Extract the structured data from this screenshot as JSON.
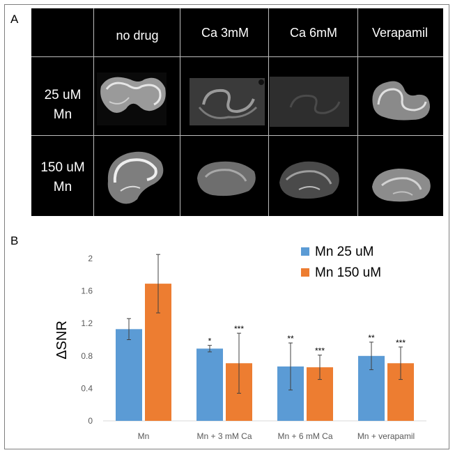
{
  "panel_a": {
    "label": "A",
    "columns": [
      "no drug",
      "Ca 3mM",
      "Ca 6mM",
      "Verapamil"
    ],
    "rows": [
      {
        "line1": "25 uM",
        "line2": "Mn"
      },
      {
        "line1": "150 uM",
        "line2": "Mn"
      }
    ]
  },
  "panel_b": {
    "label": "B"
  },
  "colors": {
    "series1": "#5b9bd5",
    "series2": "#ed7d31",
    "axis": "#d9d9d9",
    "tick": "#595959"
  },
  "chart_data": {
    "type": "bar",
    "title": "",
    "xlabel": "",
    "ylabel": "ΔSNR",
    "ylim": [
      0,
      2
    ],
    "yticks": [
      "0",
      "0.4",
      "0.8",
      "1.2",
      "1.6",
      "2"
    ],
    "categories": [
      "Mn",
      "Mn + 3 mM Ca",
      "Mn + 6 mM Ca",
      "Mn + verapamil"
    ],
    "series": [
      {
        "name": "Mn 25 uM",
        "values": [
          1.13,
          0.89,
          0.67,
          0.8
        ],
        "errors": [
          0.13,
          0.04,
          0.29,
          0.17
        ],
        "significance": [
          "",
          "*",
          "**",
          "**"
        ]
      },
      {
        "name": "Mn 150 uM",
        "values": [
          1.69,
          0.71,
          0.66,
          0.71
        ],
        "errors": [
          0.36,
          0.37,
          0.15,
          0.2
        ],
        "significance": [
          "",
          "***",
          "***",
          "***"
        ]
      }
    ],
    "legend": "top-right",
    "grid": false
  }
}
